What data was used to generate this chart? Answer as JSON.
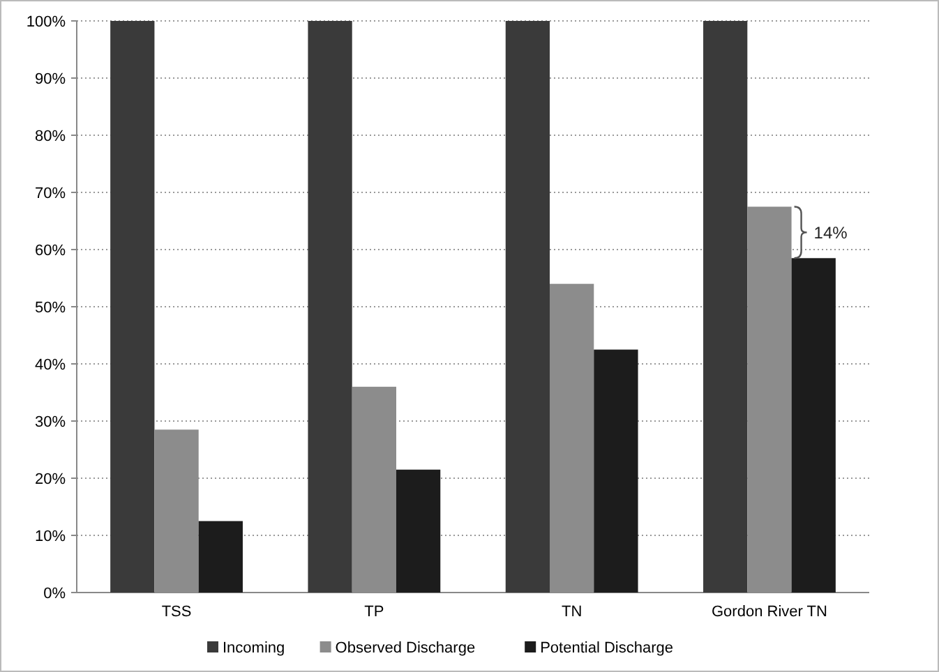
{
  "chart_data": {
    "type": "bar",
    "categories": [
      "TSS",
      "TP",
      "TN",
      "Gordon River TN"
    ],
    "series": [
      {
        "name": "Incoming",
        "color": "#3a3a3a",
        "values": [
          100,
          100,
          100,
          100
        ]
      },
      {
        "name": "Observed Discharge",
        "color": "#8c8c8c",
        "values": [
          28.5,
          36,
          54,
          67.5
        ]
      },
      {
        "name": "Potential Discharge",
        "color": "#1c1c1c",
        "values": [
          12.5,
          21.5,
          42.5,
          58.5
        ]
      }
    ],
    "ylim": [
      0,
      100
    ],
    "yticks": [
      {
        "value": 0,
        "label": "0%"
      },
      {
        "value": 10,
        "label": "10%"
      },
      {
        "value": 20,
        "label": "20%"
      },
      {
        "value": 30,
        "label": "30%"
      },
      {
        "value": 40,
        "label": "40%"
      },
      {
        "value": 50,
        "label": "50%"
      },
      {
        "value": 60,
        "label": "60%"
      },
      {
        "value": 70,
        "label": "70%"
      },
      {
        "value": 80,
        "label": "80%"
      },
      {
        "value": 90,
        "label": "90%"
      },
      {
        "value": 100,
        "label": "100%"
      }
    ],
    "grid": "y",
    "legend": "bottom",
    "annotations": [
      "14%"
    ]
  }
}
